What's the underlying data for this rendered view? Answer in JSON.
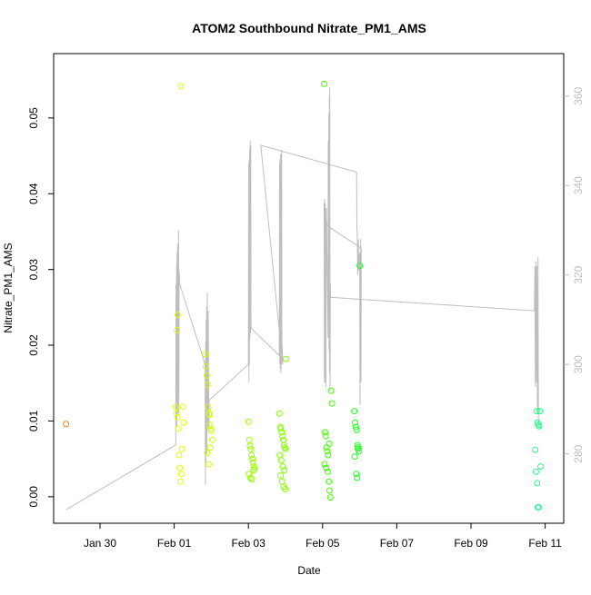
{
  "chart_data": {
    "type": "scatter",
    "title": "ATOM2 Southbound Nitrate_PM1_AMS",
    "xlabel": "Date",
    "ylabel": "Nitrate_PM1_AMS",
    "x_ticks": [
      "Jan 30",
      "Feb 01",
      "Feb 03",
      "Feb 05",
      "Feb 07",
      "Feb 09",
      "Feb 11"
    ],
    "y_ticks": [
      "0.00",
      "0.01",
      "0.02",
      "0.03",
      "0.04",
      "0.05"
    ],
    "y2_ticks": [
      "280",
      "300",
      "320",
      "340",
      "360"
    ],
    "xlim": [
      "2017-01-28T18:00",
      "2017-02-11T12:00"
    ],
    "ylim": [
      -0.0035,
      0.0585
    ],
    "y2lim": [
      264.5,
      369.5
    ],
    "grid": false,
    "series": [
      {
        "color": "#ff7f00",
        "points": [
          [
            "2017-01-29T02:00",
            0.0096
          ]
        ]
      },
      {
        "color": "#e6ff00",
        "points": [
          [
            "2017-02-01T01:00",
            0.0118
          ],
          [
            "2017-02-01T01:30",
            0.011
          ],
          [
            "2017-02-01T02:00",
            0.0105
          ],
          [
            "2017-02-01T02:30",
            0.009
          ],
          [
            "2017-02-01T03:00",
            0.0055
          ],
          [
            "2017-02-01T03:30",
            0.0038
          ],
          [
            "2017-02-01T04:00",
            0.002
          ],
          [
            "2017-02-01T04:30",
            0.003
          ],
          [
            "2017-02-01T01:45",
            0.022
          ],
          [
            "2017-02-01T02:15",
            0.024
          ],
          [
            "2017-02-01T05:00",
            0.0063
          ],
          [
            "2017-02-01T05:30",
            0.0119
          ],
          [
            "2017-02-01T04:15",
            0.0542
          ],
          [
            "2017-02-01T06:00",
            0.0098
          ]
        ]
      },
      {
        "color": "#ccff00",
        "points": [
          [
            "2017-02-01T20:00",
            0.0188
          ],
          [
            "2017-02-01T20:30",
            0.0172
          ],
          [
            "2017-02-01T21:00",
            0.016
          ],
          [
            "2017-02-01T21:30",
            0.0148
          ],
          [
            "2017-02-01T22:00",
            0.0118
          ],
          [
            "2017-02-01T22:30",
            0.011
          ],
          [
            "2017-02-01T23:00",
            0.0095
          ],
          [
            "2017-02-01T23:30",
            0.009
          ],
          [
            "2017-02-02T00:00",
            0.0087
          ],
          [
            "2017-02-02T00:30",
            0.0075
          ],
          [
            "2017-02-01T21:15",
            0.0058
          ],
          [
            "2017-02-01T22:15",
            0.0043
          ],
          [
            "2017-02-01T23:15",
            0.0065
          ],
          [
            "2017-02-01T22:45",
            0.0108
          ]
        ]
      },
      {
        "color": "#99ff00",
        "points": [
          [
            "2017-02-03T00:00",
            0.0099
          ],
          [
            "2017-02-03T00:30",
            0.0075
          ],
          [
            "2017-02-03T01:00",
            0.0067
          ],
          [
            "2017-02-03T01:30",
            0.0063
          ],
          [
            "2017-02-03T02:00",
            0.0055
          ],
          [
            "2017-02-03T02:30",
            0.005
          ],
          [
            "2017-02-03T03:00",
            0.0045
          ],
          [
            "2017-02-03T03:30",
            0.004
          ],
          [
            "2017-02-03T04:00",
            0.0037
          ],
          [
            "2017-02-03T00:15",
            0.003
          ],
          [
            "2017-02-03T01:15",
            0.0025
          ],
          [
            "2017-02-03T02:15",
            0.0023
          ],
          [
            "2017-02-03T03:15",
            0.0035
          ]
        ]
      },
      {
        "color": "#88ff00",
        "points": [
          [
            "2017-02-03T20:00",
            0.011
          ],
          [
            "2017-02-03T20:30",
            0.0092
          ],
          [
            "2017-02-03T21:00",
            0.009
          ],
          [
            "2017-02-03T21:30",
            0.0085
          ],
          [
            "2017-02-03T22:00",
            0.008
          ],
          [
            "2017-02-03T22:30",
            0.0075
          ],
          [
            "2017-02-03T23:00",
            0.0068
          ],
          [
            "2017-02-03T23:30",
            0.0065
          ],
          [
            "2017-02-04T00:00",
            0.0063
          ],
          [
            "2017-02-03T20:15",
            0.0055
          ],
          [
            "2017-02-03T21:15",
            0.0048
          ],
          [
            "2017-02-03T22:15",
            0.004
          ],
          [
            "2017-02-03T23:15",
            0.0035
          ],
          [
            "2017-02-03T20:45",
            0.0028
          ],
          [
            "2017-02-03T21:45",
            0.002
          ],
          [
            "2017-02-03T22:45",
            0.0013
          ],
          [
            "2017-02-03T23:45",
            0.001
          ],
          [
            "2017-02-04T00:15",
            0.0182
          ]
        ]
      },
      {
        "color": "#44ff00",
        "points": [
          [
            "2017-02-05T01:00",
            0.0545
          ],
          [
            "2017-02-05T01:30",
            0.0085
          ],
          [
            "2017-02-05T02:00",
            0.008
          ],
          [
            "2017-02-05T02:30",
            0.0065
          ],
          [
            "2017-02-05T03:00",
            0.006
          ],
          [
            "2017-02-05T03:30",
            0.0055
          ],
          [
            "2017-02-05T01:15",
            0.0043
          ],
          [
            "2017-02-05T02:15",
            0.0038
          ],
          [
            "2017-02-05T03:15",
            0.0033
          ],
          [
            "2017-02-05T04:00",
            0.002
          ],
          [
            "2017-02-05T04:30",
            0.0008
          ],
          [
            "2017-02-05T05:00",
            -0.0001
          ],
          [
            "2017-02-05T05:30",
            0.014
          ],
          [
            "2017-02-05T06:00",
            0.0123
          ],
          [
            "2017-02-05T04:15",
            0.007
          ]
        ]
      },
      {
        "color": "#22ff22",
        "points": [
          [
            "2017-02-05T20:30",
            0.0113
          ],
          [
            "2017-02-05T21:00",
            0.0098
          ],
          [
            "2017-02-05T21:30",
            0.0092
          ],
          [
            "2017-02-05T22:00",
            0.0088
          ],
          [
            "2017-02-05T22:30",
            0.0068
          ],
          [
            "2017-02-05T23:00",
            0.0065
          ],
          [
            "2017-02-05T23:30",
            0.006
          ],
          [
            "2017-02-05T20:45",
            0.0053
          ],
          [
            "2017-02-05T21:45",
            0.003
          ],
          [
            "2017-02-05T22:15",
            0.0025
          ],
          [
            "2017-02-06T00:00",
            0.0305
          ],
          [
            "2017-02-05T22:45",
            0.0063
          ]
        ]
      },
      {
        "color": "#22ff88",
        "points": [
          [
            "2017-02-10T18:30",
            0.0113
          ],
          [
            "2017-02-10T19:00",
            0.0098
          ],
          [
            "2017-02-10T19:30",
            0.0095
          ],
          [
            "2017-02-10T20:00",
            0.0093
          ],
          [
            "2017-02-10T20:30",
            0.0113
          ],
          [
            "2017-02-10T17:30",
            0.0062
          ],
          [
            "2017-02-10T21:00",
            0.004
          ],
          [
            "2017-02-10T18:00",
            0.0033
          ],
          [
            "2017-02-10T18:45",
            0.0018
          ],
          [
            "2017-02-10T19:15",
            -0.0014
          ],
          [
            "2017-02-10T19:45",
            -0.0014
          ]
        ]
      }
    ],
    "secondary_line": {
      "color": "#bebebe",
      "points": [
        [
          "2017-01-29T02:00",
          267.5
        ],
        [
          "2017-02-01T01:00",
          282
        ],
        [
          "2017-02-01T01:10",
          318
        ],
        [
          "2017-02-01T01:20",
          292
        ],
        [
          "2017-02-01T01:30",
          322
        ],
        [
          "2017-02-01T01:40",
          286
        ],
        [
          "2017-02-01T01:50",
          325
        ],
        [
          "2017-02-01T02:00",
          297
        ],
        [
          "2017-02-01T02:10",
          327
        ],
        [
          "2017-02-01T02:20",
          289
        ],
        [
          "2017-02-01T02:30",
          320
        ],
        [
          "2017-02-01T02:40",
          294
        ],
        [
          "2017-02-01T02:50",
          330
        ],
        [
          "2017-02-01T03:00",
          289
        ],
        [
          "2017-02-01T03:10",
          321
        ],
        [
          "2017-02-01T03:30",
          318
        ],
        [
          "2017-02-01T20:00",
          300
        ],
        [
          "2017-02-01T20:10",
          273
        ],
        [
          "2017-02-01T20:20",
          305
        ],
        [
          "2017-02-01T20:30",
          278
        ],
        [
          "2017-02-01T20:40",
          310
        ],
        [
          "2017-02-01T20:50",
          283
        ],
        [
          "2017-02-01T21:00",
          313
        ],
        [
          "2017-02-01T21:10",
          280
        ],
        [
          "2017-02-01T21:20",
          316
        ],
        [
          "2017-02-01T21:30",
          290
        ],
        [
          "2017-02-01T21:40",
          310
        ],
        [
          "2017-02-01T21:50",
          286
        ],
        [
          "2017-02-01T22:00",
          312
        ],
        [
          "2017-02-01T22:10",
          300
        ],
        [
          "2017-02-01T22:30",
          285
        ],
        [
          "2017-02-01T22:40",
          292
        ],
        [
          "2017-02-03T00:00",
          300
        ],
        [
          "2017-02-03T00:10",
          345
        ],
        [
          "2017-02-03T00:20",
          296
        ],
        [
          "2017-02-03T00:30",
          346
        ],
        [
          "2017-02-03T00:40",
          300
        ],
        [
          "2017-02-03T00:50",
          348
        ],
        [
          "2017-02-03T01:00",
          306
        ],
        [
          "2017-02-03T01:10",
          350
        ],
        [
          "2017-02-03T01:20",
          307
        ],
        [
          "2017-02-03T01:30",
          349
        ],
        [
          "2017-02-03T01:40",
          309
        ],
        [
          "2017-02-03T02:00",
          308
        ],
        [
          "2017-02-03T20:00",
          302
        ],
        [
          "2017-02-03T20:10",
          345
        ],
        [
          "2017-02-03T20:20",
          300
        ],
        [
          "2017-02-03T20:30",
          346
        ],
        [
          "2017-02-03T20:40",
          299
        ],
        [
          "2017-02-03T20:50",
          347
        ],
        [
          "2017-02-03T21:00",
          298
        ],
        [
          "2017-02-03T21:10",
          347
        ],
        [
          "2017-02-03T21:20",
          300
        ],
        [
          "2017-02-03T21:30",
          348
        ],
        [
          "2017-02-03T21:40",
          305
        ],
        [
          "2017-02-03T22:00",
          303
        ],
        [
          "2017-02-03T22:10",
          300
        ],
        [
          "2017-02-03T08:00",
          349
        ],
        [
          "2017-02-05T22:00",
          343
        ],
        [
          "2017-02-05T22:10",
          330
        ],
        [
          "2017-02-05T22:20",
          330
        ],
        [
          "2017-02-05T22:30",
          327
        ],
        [
          "2017-02-05T22:40",
          320
        ],
        [
          "2017-02-05T22:50",
          326
        ],
        [
          "2017-02-05T23:00",
          322
        ],
        [
          "2017-02-05T23:10",
          328
        ],
        [
          "2017-02-05T23:20",
          321
        ],
        [
          "2017-02-06T00:00",
          325
        ],
        [
          "2017-02-06T00:10",
          291
        ],
        [
          "2017-02-06T00:20",
          325
        ],
        [
          "2017-02-06T00:30",
          300
        ],
        [
          "2017-02-06T00:40",
          328
        ],
        [
          "2017-02-06T00:50",
          296
        ],
        [
          "2017-02-06T01:00",
          326
        ],
        [
          "2017-02-05T03:00",
          331
        ],
        [
          "2017-02-05T01:00",
          336
        ],
        [
          "2017-02-05T01:10",
          296
        ],
        [
          "2017-02-05T01:20",
          337
        ],
        [
          "2017-02-05T01:30",
          298
        ],
        [
          "2017-02-05T01:40",
          336
        ],
        [
          "2017-02-05T01:50",
          296
        ],
        [
          "2017-02-05T02:00",
          335
        ],
        [
          "2017-02-05T02:10",
          295
        ],
        [
          "2017-02-05T02:20",
          333
        ],
        [
          "2017-02-05T02:30",
          335
        ],
        [
          "2017-02-05T03:30",
          306
        ],
        [
          "2017-02-05T03:40",
          350
        ],
        [
          "2017-02-05T03:50",
          310
        ],
        [
          "2017-02-05T04:00",
          356
        ],
        [
          "2017-02-05T04:10",
          303
        ],
        [
          "2017-02-05T04:20",
          360
        ],
        [
          "2017-02-05T04:30",
          298
        ],
        [
          "2017-02-05T04:40",
          362
        ],
        [
          "2017-02-05T04:50",
          294
        ],
        [
          "2017-02-05T05:00",
          318
        ],
        [
          "2017-02-05T05:10",
          315
        ],
        [
          "2017-02-10T17:00",
          312
        ],
        [
          "2017-02-10T17:20",
          322
        ],
        [
          "2017-02-10T17:40",
          295
        ],
        [
          "2017-02-10T18:00",
          323
        ],
        [
          "2017-02-10T18:20",
          296
        ],
        [
          "2017-02-10T18:40",
          322
        ],
        [
          "2017-02-10T19:00",
          289
        ],
        [
          "2017-02-10T19:20",
          324
        ],
        [
          "2017-02-10T19:40",
          286
        ]
      ]
    }
  }
}
